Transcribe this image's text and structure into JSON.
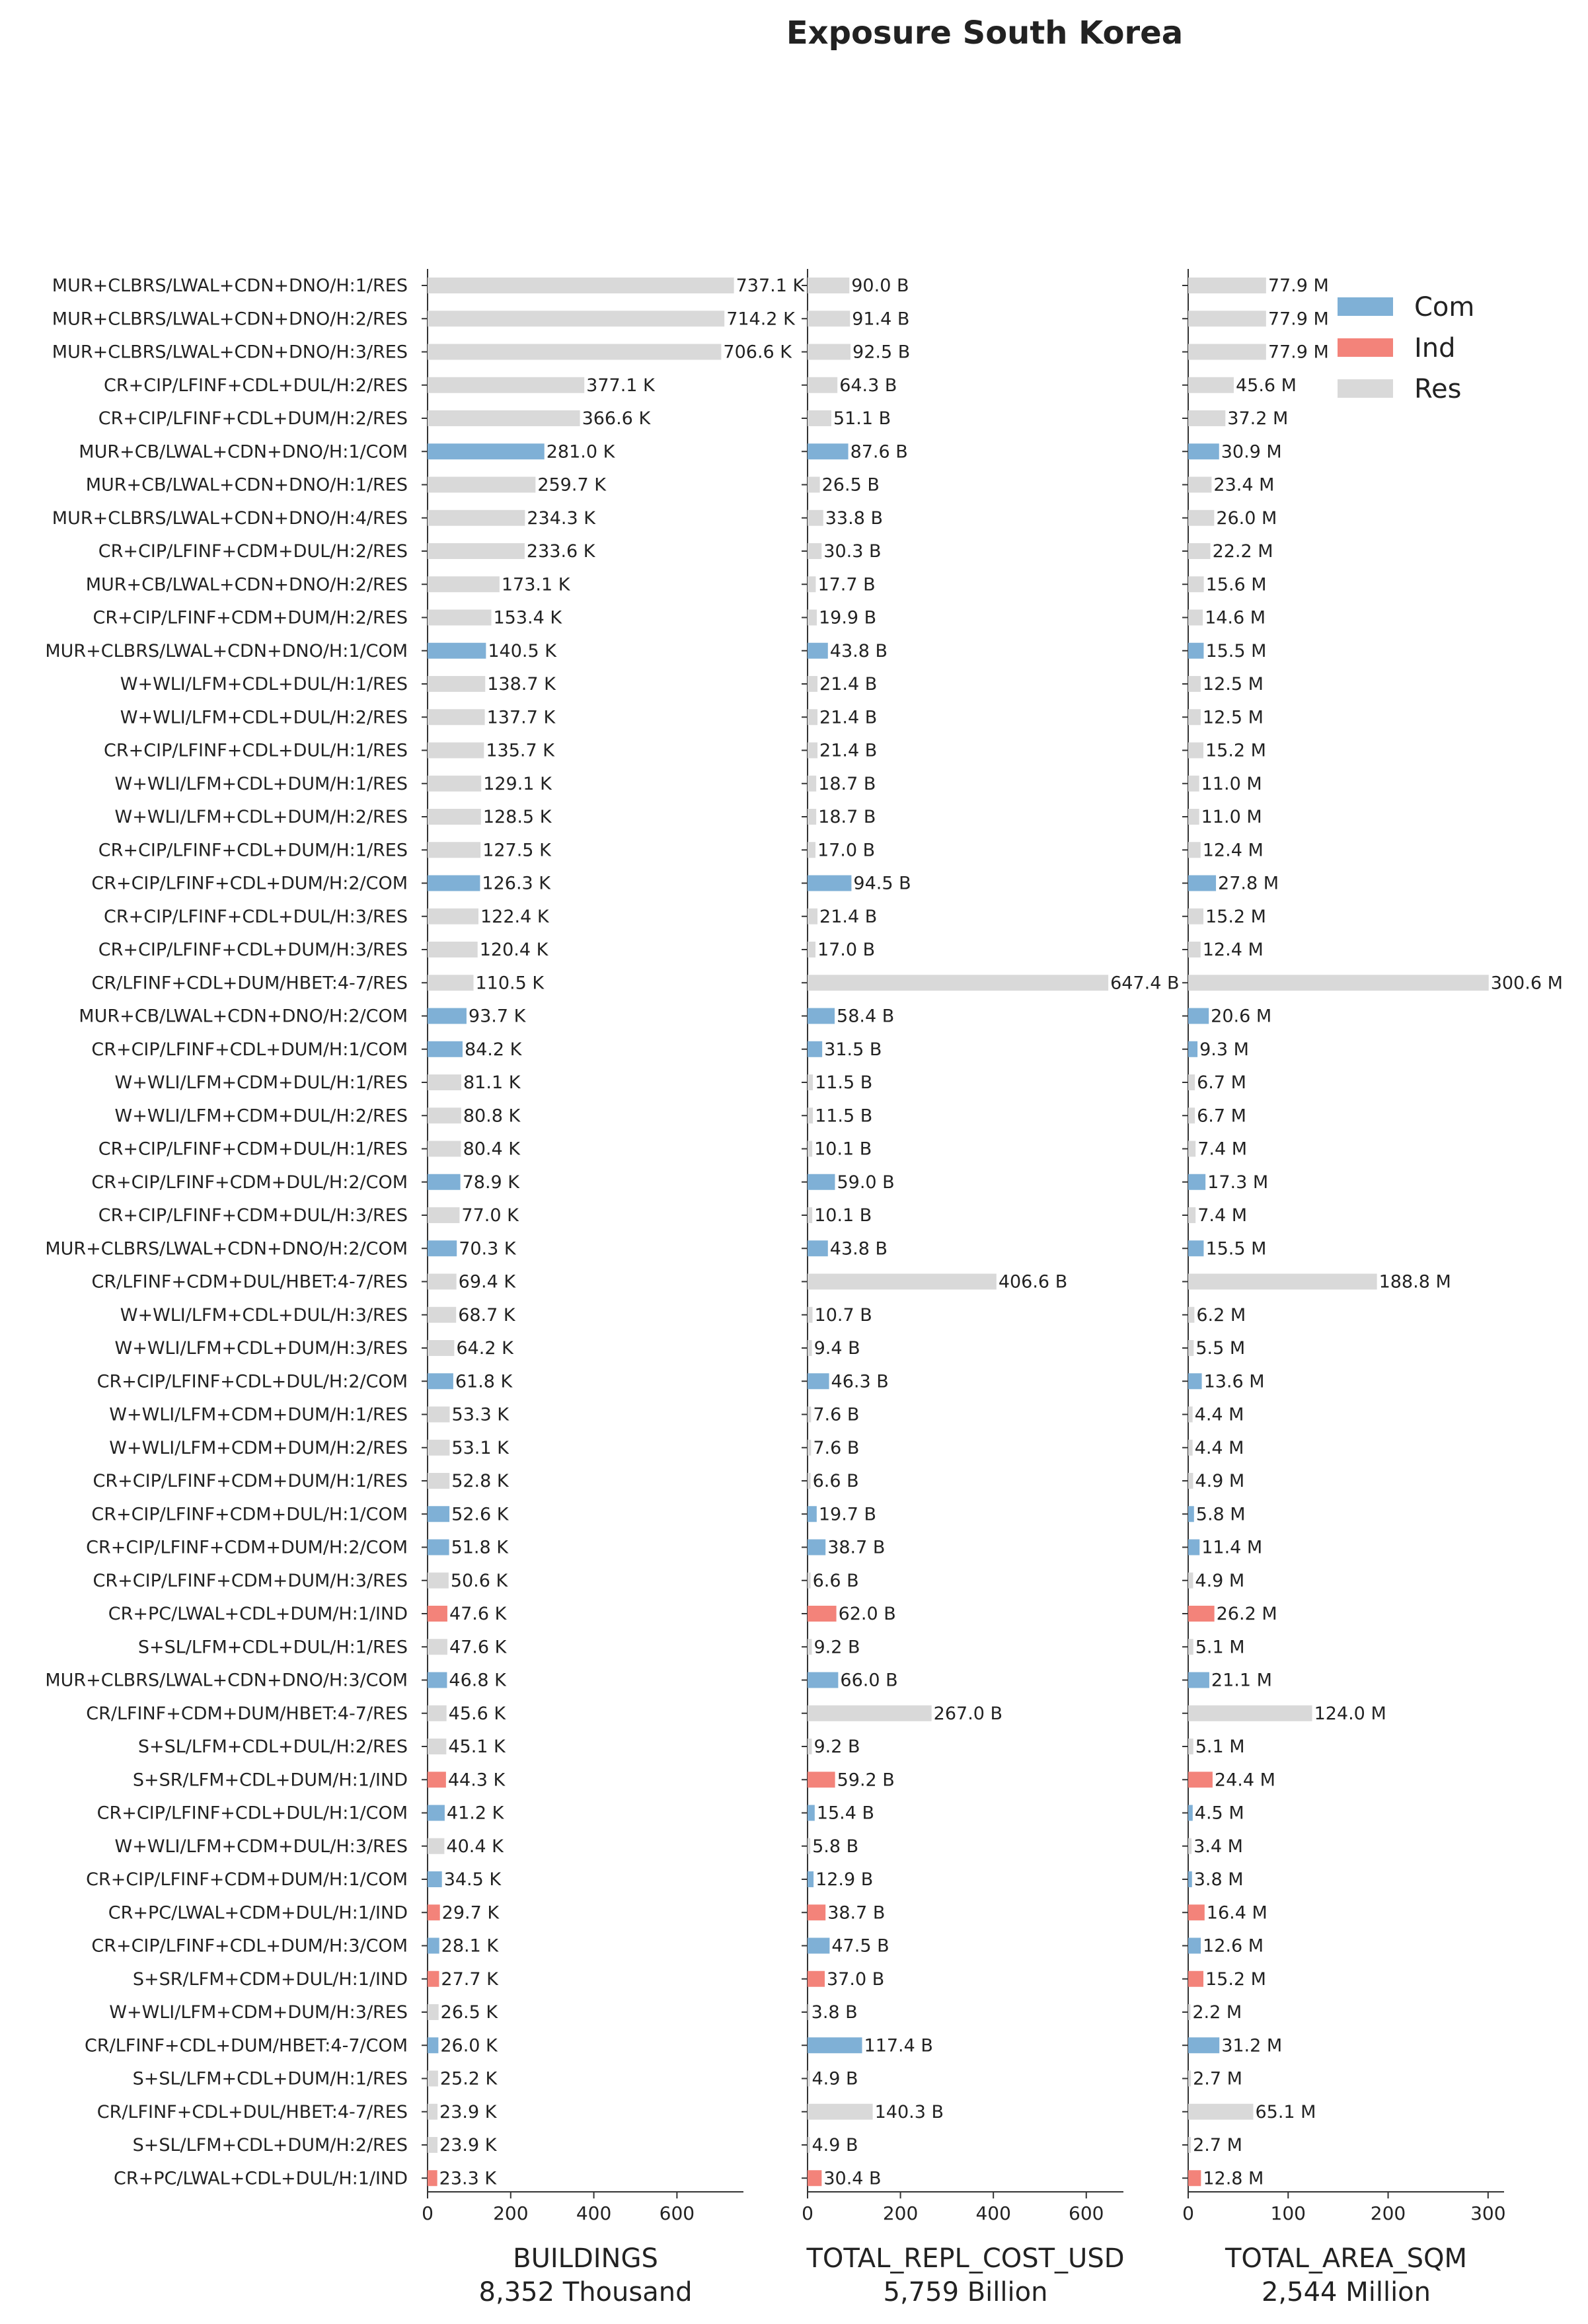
{
  "chart_data": {
    "type": "bar",
    "orientation": "horizontal",
    "title": "Exposure South Korea",
    "categories": [
      "MUR+CLBRS/LWAL+CDN+DNO/H:1/RES",
      "MUR+CLBRS/LWAL+CDN+DNO/H:2/RES",
      "MUR+CLBRS/LWAL+CDN+DNO/H:3/RES",
      "CR+CIP/LFINF+CDL+DUL/H:2/RES",
      "CR+CIP/LFINF+CDL+DUM/H:2/RES",
      "MUR+CB/LWAL+CDN+DNO/H:1/COM",
      "MUR+CB/LWAL+CDN+DNO/H:1/RES",
      "MUR+CLBRS/LWAL+CDN+DNO/H:4/RES",
      "CR+CIP/LFINF+CDM+DUL/H:2/RES",
      "MUR+CB/LWAL+CDN+DNO/H:2/RES",
      "CR+CIP/LFINF+CDM+DUM/H:2/RES",
      "MUR+CLBRS/LWAL+CDN+DNO/H:1/COM",
      "W+WLI/LFM+CDL+DUL/H:1/RES",
      "W+WLI/LFM+CDL+DUL/H:2/RES",
      "CR+CIP/LFINF+CDL+DUL/H:1/RES",
      "W+WLI/LFM+CDL+DUM/H:1/RES",
      "W+WLI/LFM+CDL+DUM/H:2/RES",
      "CR+CIP/LFINF+CDL+DUM/H:1/RES",
      "CR+CIP/LFINF+CDL+DUM/H:2/COM",
      "CR+CIP/LFINF+CDL+DUL/H:3/RES",
      "CR+CIP/LFINF+CDL+DUM/H:3/RES",
      "CR/LFINF+CDL+DUM/HBET:4-7/RES",
      "MUR+CB/LWAL+CDN+DNO/H:2/COM",
      "CR+CIP/LFINF+CDL+DUM/H:1/COM",
      "W+WLI/LFM+CDM+DUL/H:1/RES",
      "W+WLI/LFM+CDM+DUL/H:2/RES",
      "CR+CIP/LFINF+CDM+DUL/H:1/RES",
      "CR+CIP/LFINF+CDM+DUL/H:2/COM",
      "CR+CIP/LFINF+CDM+DUL/H:3/RES",
      "MUR+CLBRS/LWAL+CDN+DNO/H:2/COM",
      "CR/LFINF+CDM+DUL/HBET:4-7/RES",
      "W+WLI/LFM+CDL+DUL/H:3/RES",
      "W+WLI/LFM+CDL+DUM/H:3/RES",
      "CR+CIP/LFINF+CDL+DUL/H:2/COM",
      "W+WLI/LFM+CDM+DUM/H:1/RES",
      "W+WLI/LFM+CDM+DUM/H:2/RES",
      "CR+CIP/LFINF+CDM+DUM/H:1/RES",
      "CR+CIP/LFINF+CDM+DUL/H:1/COM",
      "CR+CIP/LFINF+CDM+DUM/H:2/COM",
      "CR+CIP/LFINF+CDM+DUM/H:3/RES",
      "CR+PC/LWAL+CDL+DUM/H:1/IND",
      "S+SL/LFM+CDL+DUL/H:1/RES",
      "MUR+CLBRS/LWAL+CDN+DNO/H:3/COM",
      "CR/LFINF+CDM+DUM/HBET:4-7/RES",
      "S+SL/LFM+CDL+DUL/H:2/RES",
      "S+SR/LFM+CDL+DUM/H:1/IND",
      "CR+CIP/LFINF+CDL+DUL/H:1/COM",
      "W+WLI/LFM+CDM+DUL/H:3/RES",
      "CR+CIP/LFINF+CDM+DUM/H:1/COM",
      "CR+PC/LWAL+CDM+DUL/H:1/IND",
      "CR+CIP/LFINF+CDL+DUM/H:3/COM",
      "S+SR/LFM+CDM+DUL/H:1/IND",
      "W+WLI/LFM+CDM+DUM/H:3/RES",
      "CR/LFINF+CDL+DUM/HBET:4-7/COM",
      "S+SL/LFM+CDL+DUM/H:1/RES",
      "CR/LFINF+CDL+DUL/HBET:4-7/RES",
      "S+SL/LFM+CDL+DUM/H:2/RES",
      "CR+PC/LWAL+CDL+DUL/H:1/IND"
    ],
    "occupancy": [
      "Res",
      "Res",
      "Res",
      "Res",
      "Res",
      "Com",
      "Res",
      "Res",
      "Res",
      "Res",
      "Res",
      "Com",
      "Res",
      "Res",
      "Res",
      "Res",
      "Res",
      "Res",
      "Com",
      "Res",
      "Res",
      "Res",
      "Com",
      "Com",
      "Res",
      "Res",
      "Res",
      "Com",
      "Res",
      "Com",
      "Res",
      "Res",
      "Res",
      "Com",
      "Res",
      "Res",
      "Res",
      "Com",
      "Com",
      "Res",
      "Ind",
      "Res",
      "Com",
      "Res",
      "Res",
      "Ind",
      "Com",
      "Res",
      "Com",
      "Ind",
      "Com",
      "Ind",
      "Res",
      "Com",
      "Res",
      "Res",
      "Res",
      "Ind"
    ],
    "legend": {
      "placement": "top-right",
      "entries": [
        {
          "name": "Com",
          "color": "#7fb0d6"
        },
        {
          "name": "Ind",
          "color": "#f3837a"
        },
        {
          "name": "Res",
          "color": "#d9d9d9"
        }
      ]
    },
    "panels": [
      {
        "xlabel": "BUILDINGS",
        "subtitle": "8,352 Thousand",
        "unit_suffix": " K",
        "xlim": [
          0,
          760
        ],
        "xticks": [
          0,
          200,
          400,
          600
        ],
        "values": [
          737.1,
          714.2,
          706.6,
          377.1,
          366.6,
          281.0,
          259.7,
          234.3,
          233.6,
          173.1,
          153.4,
          140.5,
          138.7,
          137.7,
          135.7,
          129.1,
          128.5,
          127.5,
          126.3,
          122.4,
          120.4,
          110.5,
          93.7,
          84.2,
          81.1,
          80.8,
          80.4,
          78.9,
          77.0,
          70.3,
          69.4,
          68.7,
          64.2,
          61.8,
          53.3,
          53.1,
          52.8,
          52.6,
          51.8,
          50.6,
          47.6,
          47.6,
          46.8,
          45.6,
          45.1,
          44.3,
          41.2,
          40.4,
          34.5,
          29.7,
          28.1,
          27.7,
          26.5,
          26.0,
          25.2,
          23.9,
          23.9,
          23.3
        ]
      },
      {
        "xlabel": "TOTAL_REPL_COST_USD",
        "subtitle": "5,759 Billion",
        "unit_suffix": " B",
        "xlim": [
          0,
          680
        ],
        "xticks": [
          0,
          200,
          400,
          600
        ],
        "values": [
          90.0,
          91.4,
          92.5,
          64.3,
          51.1,
          87.6,
          26.5,
          33.8,
          30.3,
          17.7,
          19.9,
          43.8,
          21.4,
          21.4,
          21.4,
          18.7,
          18.7,
          17.0,
          94.5,
          21.4,
          17.0,
          647.4,
          58.4,
          31.5,
          11.5,
          11.5,
          10.1,
          59.0,
          10.1,
          43.8,
          406.6,
          10.7,
          9.4,
          46.3,
          7.6,
          7.6,
          6.6,
          19.7,
          38.7,
          6.6,
          62.0,
          9.2,
          66.0,
          267.0,
          9.2,
          59.2,
          15.4,
          5.8,
          12.9,
          38.7,
          47.5,
          37.0,
          3.8,
          117.4,
          4.9,
          140.3,
          4.9,
          30.4
        ]
      },
      {
        "xlabel": "TOTAL_AREA_SQM",
        "subtitle": "2,544 Million",
        "unit_suffix": " M",
        "xlim": [
          0,
          316
        ],
        "xticks": [
          0,
          100,
          200,
          300
        ],
        "values": [
          77.9,
          77.9,
          77.9,
          45.6,
          37.2,
          30.9,
          23.4,
          26.0,
          22.2,
          15.6,
          14.6,
          15.5,
          12.5,
          12.5,
          15.2,
          11.0,
          11.0,
          12.4,
          27.8,
          15.2,
          12.4,
          300.6,
          20.6,
          9.3,
          6.7,
          6.7,
          7.4,
          17.3,
          7.4,
          15.5,
          188.8,
          6.2,
          5.5,
          13.6,
          4.4,
          4.4,
          4.9,
          5.8,
          11.4,
          4.9,
          26.2,
          5.1,
          21.1,
          124.0,
          5.1,
          24.4,
          4.5,
          3.4,
          3.8,
          16.4,
          12.6,
          15.2,
          2.2,
          31.2,
          2.7,
          65.1,
          2.7,
          12.8
        ]
      }
    ]
  }
}
